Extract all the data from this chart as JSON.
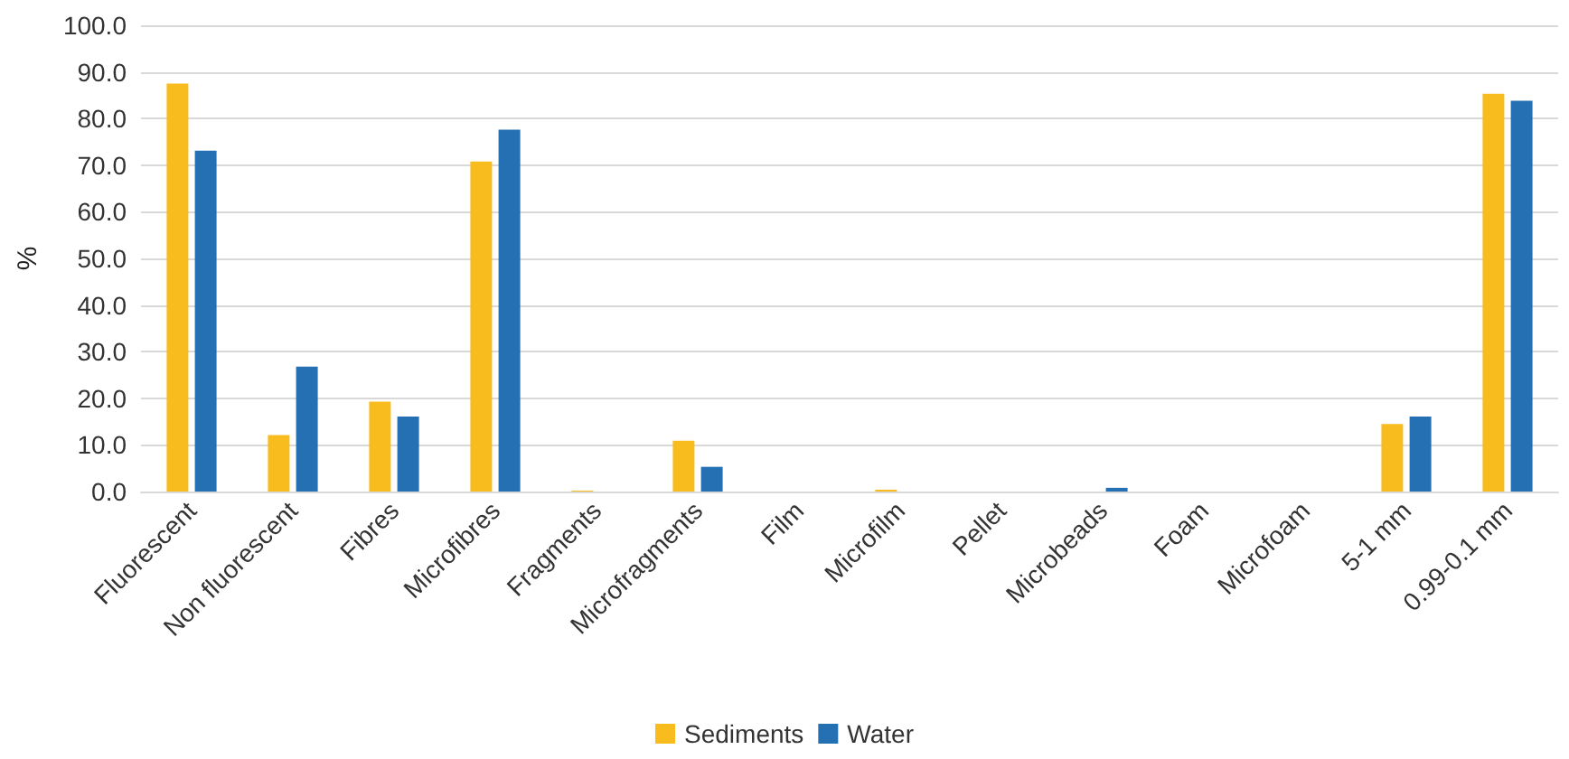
{
  "chart_data": {
    "type": "bar",
    "ylabel": "%",
    "categories": [
      "Fluorescent",
      "Non fluorescent",
      "Fibres",
      "Microfibres",
      "Fragments",
      "Microfragments",
      "Film",
      "Microfilm",
      "Pellet",
      "Microbeads",
      "Foam",
      "Microfoam",
      "5-1 mm",
      "0.99-0.1 mm"
    ],
    "series": [
      {
        "name": "Sediments",
        "color": "#f9bc1e",
        "values": [
          87.5,
          12.1,
          19.3,
          70.8,
          0.2,
          10.9,
          0,
          0.4,
          0,
          0,
          0,
          0,
          14.5,
          85.3
        ]
      },
      {
        "name": "Water",
        "color": "#2470b3",
        "values": [
          73.1,
          26.8,
          16.1,
          77.6,
          0,
          5.3,
          0,
          0,
          0,
          0.8,
          0,
          0,
          16.1,
          83.8
        ]
      }
    ],
    "ylim": [
      0,
      100
    ],
    "yticks": [
      {
        "value": 0,
        "label": "0.0"
      },
      {
        "value": 10,
        "label": "10.0"
      },
      {
        "value": 20,
        "label": "20.0"
      },
      {
        "value": 30,
        "label": "30.0"
      },
      {
        "value": 40,
        "label": "40.0"
      },
      {
        "value": 50,
        "label": "50.0"
      },
      {
        "value": 60,
        "label": "60.0"
      },
      {
        "value": 70,
        "label": "70.0"
      },
      {
        "value": 80,
        "label": "80.0"
      },
      {
        "value": 90,
        "label": "90.0"
      },
      {
        "value": 100,
        "label": "100.0"
      }
    ],
    "grid": "y",
    "legend": "bottom"
  }
}
